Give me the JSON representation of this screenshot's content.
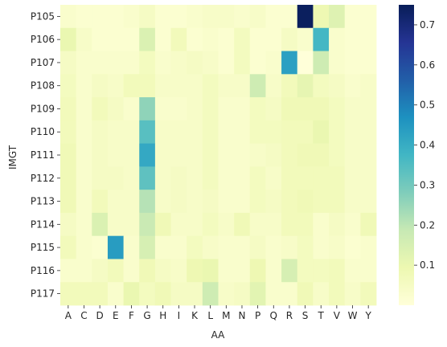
{
  "chart_data": {
    "type": "heatmap",
    "title": "",
    "xlabel": "AA",
    "ylabel": "IMGT",
    "x_categories": [
      "A",
      "C",
      "D",
      "E",
      "F",
      "G",
      "H",
      "I",
      "K",
      "L",
      "M",
      "N",
      "P",
      "Q",
      "R",
      "S",
      "T",
      "V",
      "W",
      "Y"
    ],
    "y_categories": [
      "P105",
      "P106",
      "P107",
      "P108",
      "P109",
      "P110",
      "P111",
      "P112",
      "P113",
      "P114",
      "P115",
      "P116",
      "P117"
    ],
    "values": [
      [
        0.03,
        0.02,
        0.02,
        0.02,
        0.03,
        0.05,
        0.02,
        0.02,
        0.03,
        0.04,
        0.04,
        0.03,
        0.04,
        0.02,
        0.02,
        0.74,
        0.09,
        0.13,
        0.02,
        0.02
      ],
      [
        0.1,
        0.04,
        0.02,
        0.02,
        0.02,
        0.14,
        0.02,
        0.07,
        0.02,
        0.03,
        0.02,
        0.06,
        0.02,
        0.02,
        0.05,
        0.03,
        0.37,
        0.03,
        0.02,
        0.02
      ],
      [
        0.05,
        0.03,
        0.03,
        0.03,
        0.03,
        0.06,
        0.03,
        0.04,
        0.05,
        0.04,
        0.02,
        0.06,
        0.02,
        0.03,
        0.43,
        0.0,
        0.17,
        0.03,
        0.02,
        0.02
      ],
      [
        0.06,
        0.03,
        0.05,
        0.04,
        0.07,
        0.07,
        0.04,
        0.04,
        0.04,
        0.06,
        0.04,
        0.04,
        0.17,
        0.04,
        0.07,
        0.11,
        0.06,
        0.05,
        0.03,
        0.04
      ],
      [
        0.07,
        0.03,
        0.07,
        0.05,
        0.03,
        0.26,
        0.03,
        0.03,
        0.04,
        0.06,
        0.03,
        0.03,
        0.06,
        0.05,
        0.08,
        0.08,
        0.08,
        0.06,
        0.04,
        0.04
      ],
      [
        0.07,
        0.03,
        0.05,
        0.04,
        0.04,
        0.34,
        0.04,
        0.04,
        0.04,
        0.06,
        0.03,
        0.03,
        0.06,
        0.06,
        0.07,
        0.07,
        0.1,
        0.06,
        0.04,
        0.04
      ],
      [
        0.08,
        0.03,
        0.05,
        0.04,
        0.04,
        0.41,
        0.04,
        0.04,
        0.04,
        0.06,
        0.03,
        0.03,
        0.04,
        0.05,
        0.07,
        0.08,
        0.08,
        0.06,
        0.04,
        0.04
      ],
      [
        0.08,
        0.03,
        0.05,
        0.05,
        0.04,
        0.33,
        0.04,
        0.05,
        0.04,
        0.06,
        0.03,
        0.03,
        0.06,
        0.04,
        0.07,
        0.07,
        0.07,
        0.07,
        0.04,
        0.04
      ],
      [
        0.08,
        0.03,
        0.07,
        0.04,
        0.04,
        0.21,
        0.04,
        0.05,
        0.04,
        0.05,
        0.03,
        0.03,
        0.06,
        0.05,
        0.07,
        0.08,
        0.07,
        0.07,
        0.04,
        0.04
      ],
      [
        0.05,
        0.03,
        0.14,
        0.04,
        0.04,
        0.18,
        0.08,
        0.04,
        0.04,
        0.06,
        0.04,
        0.08,
        0.04,
        0.04,
        0.07,
        0.07,
        0.03,
        0.05,
        0.03,
        0.08
      ],
      [
        0.07,
        0.03,
        0.02,
        0.44,
        0.03,
        0.15,
        0.03,
        0.03,
        0.06,
        0.04,
        0.03,
        0.03,
        0.05,
        0.03,
        0.04,
        0.06,
        0.03,
        0.04,
        0.02,
        0.03
      ],
      [
        0.03,
        0.03,
        0.05,
        0.07,
        0.03,
        0.08,
        0.05,
        0.04,
        0.09,
        0.1,
        0.03,
        0.03,
        0.09,
        0.03,
        0.15,
        0.06,
        0.06,
        0.07,
        0.03,
        0.03
      ],
      [
        0.07,
        0.07,
        0.07,
        0.03,
        0.1,
        0.06,
        0.08,
        0.05,
        0.05,
        0.17,
        0.04,
        0.05,
        0.12,
        0.03,
        0.03,
        0.08,
        0.04,
        0.07,
        0.04,
        0.07
      ]
    ],
    "colorbar": {
      "colormap": "YlGnBu",
      "vmin": 0.0,
      "vmax": 0.75,
      "ticks": [
        0.1,
        0.2,
        0.3,
        0.4,
        0.5,
        0.6,
        0.7
      ],
      "tick_labels": [
        "0.1",
        "0.2",
        "0.3",
        "0.4",
        "0.5",
        "0.6",
        "0.7"
      ]
    }
  }
}
